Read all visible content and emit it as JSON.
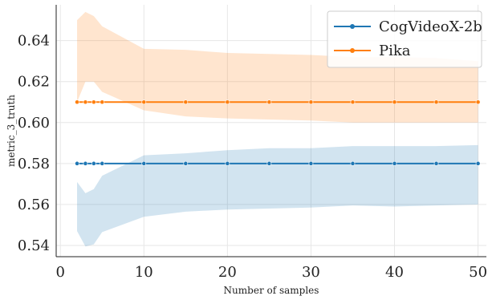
{
  "chart_data": {
    "type": "line",
    "xlabel": "Number of samples",
    "ylabel": "metric_3_truth",
    "xlim": [
      -0.5,
      51
    ],
    "ylim": [
      0.5345,
      0.6575
    ],
    "x_ticks": [
      0,
      10,
      20,
      30,
      40,
      50
    ],
    "y_ticks": [
      0.54,
      0.56,
      0.58,
      0.6,
      0.62,
      0.64
    ],
    "y_tick_labels": [
      "0.54",
      "0.56",
      "0.58",
      "0.60",
      "0.62",
      "0.64"
    ],
    "grid": true,
    "legend_position": "top-right",
    "x": [
      2,
      3,
      4,
      5,
      10,
      15,
      20,
      25,
      30,
      35,
      40,
      45,
      50
    ],
    "series": [
      {
        "name": "CogVideoX-2b",
        "color": "#1f77b4",
        "values": [
          0.58,
          0.58,
          0.58,
          0.58,
          0.58,
          0.58,
          0.58,
          0.58,
          0.58,
          0.58,
          0.58,
          0.58,
          0.58
        ],
        "lower": [
          0.547,
          0.5395,
          0.5405,
          0.5465,
          0.554,
          0.5565,
          0.5575,
          0.558,
          0.5585,
          0.5595,
          0.559,
          0.5595,
          0.56
        ],
        "upper": [
          0.571,
          0.5655,
          0.5675,
          0.574,
          0.584,
          0.585,
          0.5865,
          0.5875,
          0.5875,
          0.5885,
          0.5885,
          0.5885,
          0.589
        ]
      },
      {
        "name": "Pika",
        "color": "#ff7f0e",
        "values": [
          0.61,
          0.61,
          0.61,
          0.61,
          0.61,
          0.61,
          0.61,
          0.61,
          0.61,
          0.61,
          0.61,
          0.61,
          0.61
        ],
        "lower": [
          0.61,
          0.62,
          0.62,
          0.615,
          0.606,
          0.603,
          0.602,
          0.6015,
          0.601,
          0.6,
          0.6,
          0.6,
          0.6
        ],
        "upper": [
          0.65,
          0.654,
          0.652,
          0.647,
          0.636,
          0.6355,
          0.634,
          0.6335,
          0.633,
          0.632,
          0.632,
          0.6315,
          0.63
        ]
      }
    ]
  }
}
